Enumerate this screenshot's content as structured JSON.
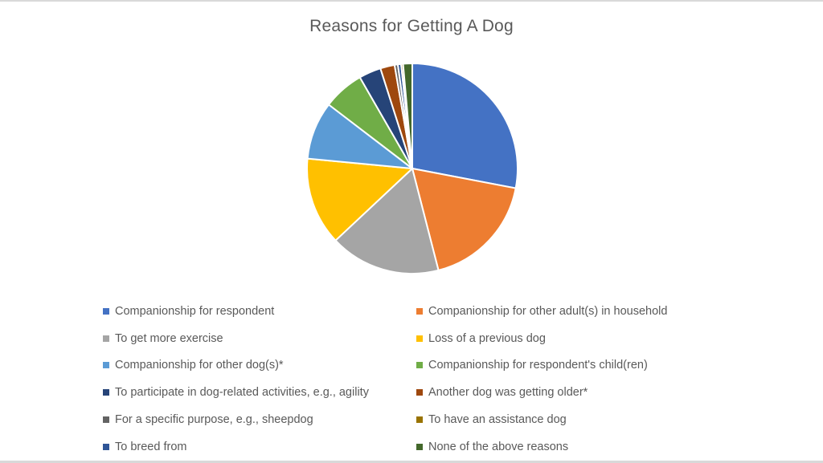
{
  "chart_data": {
    "type": "pie",
    "title": "Reasons for Getting A Dog",
    "start_angle_deg": 0,
    "direction": "clockwise",
    "legend_position": "bottom",
    "slices": [
      {
        "label": "Companionship for respondent",
        "value": 28.0,
        "color": "#4472C4"
      },
      {
        "label": "Companionship for other adult(s) in household",
        "value": 18.0,
        "color": "#ED7D31"
      },
      {
        "label": "To get more exercise",
        "value": 17.0,
        "color": "#A5A5A5"
      },
      {
        "label": "Loss of a previous dog",
        "value": 13.5,
        "color": "#FFC000"
      },
      {
        "label": "Companionship for other dog(s)*",
        "value": 8.9,
        "color": "#5B9BD5"
      },
      {
        "label": "Companionship for respondent's child(ren)",
        "value": 6.3,
        "color": "#70AD47"
      },
      {
        "label": "To participate in dog-related activities, e.g., agility",
        "value": 3.4,
        "color": "#264478"
      },
      {
        "label": "Another dog was getting older*",
        "value": 2.2,
        "color": "#9E480E"
      },
      {
        "label": "For a specific purpose, e.g., sheepdog",
        "value": 0.5,
        "color": "#636363"
      },
      {
        "label": "To breed from",
        "value": 0.5,
        "color": "#2F5597"
      },
      {
        "label": "To have an assistance dog",
        "value": 0.3,
        "color": "#997300"
      },
      {
        "label": "None of the above reasons",
        "value": 1.4,
        "color": "#43682B"
      }
    ],
    "unit": "%"
  },
  "legend": {
    "items": [
      {
        "label": "Companionship for respondent",
        "color": "#4472C4"
      },
      {
        "label": "Companionship for other adult(s) in household",
        "color": "#ED7D31"
      },
      {
        "label": "To get more exercise",
        "color": "#A5A5A5"
      },
      {
        "label": "Loss of a previous dog",
        "color": "#FFC000"
      },
      {
        "label": "Companionship for other dog(s)*",
        "color": "#5B9BD5"
      },
      {
        "label": "Companionship for respondent's child(ren)",
        "color": "#70AD47"
      },
      {
        "label": "To participate in dog-related activities, e.g., agility",
        "color": "#264478"
      },
      {
        "label": "Another dog was getting older*",
        "color": "#9E480E"
      },
      {
        "label": "For a specific purpose, e.g., sheepdog",
        "color": "#636363"
      },
      {
        "label": "To have an assistance dog",
        "color": "#997300"
      },
      {
        "label": "To breed from",
        "color": "#2F5597"
      },
      {
        "label": "None of the above reasons",
        "color": "#43682B"
      }
    ]
  }
}
